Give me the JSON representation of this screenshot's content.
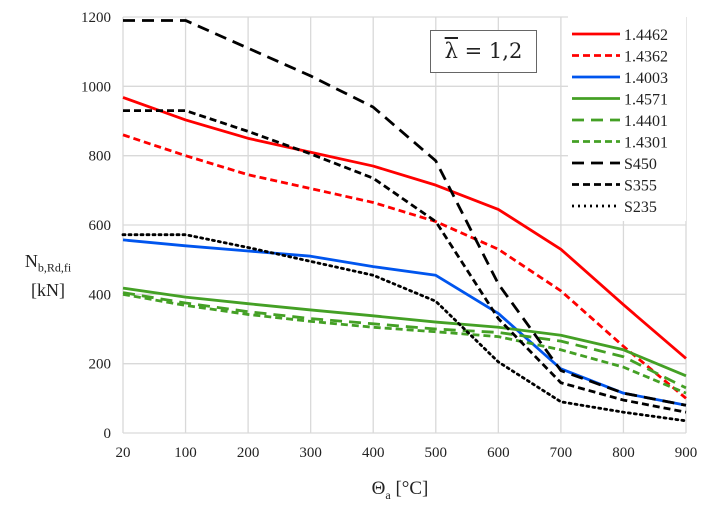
{
  "chart_data": {
    "type": "line",
    "title": "",
    "annotation": {
      "symbol": "λ",
      "rest": " = 1,2"
    },
    "xlabel": {
      "main": "Θ",
      "sub": "a",
      "unit": " [°C]"
    },
    "ylabel": {
      "main": "N",
      "sub": "b,Rd,fi",
      "unit": "[kN]"
    },
    "categories": [
      "20",
      "100",
      "200",
      "300",
      "400",
      "500",
      "600",
      "700",
      "800",
      "900"
    ],
    "ylim": [
      0,
      1200
    ],
    "yticks": [
      0,
      200,
      400,
      600,
      800,
      1000,
      1200
    ],
    "grid": true,
    "legend_position": "top-right",
    "series": [
      {
        "name": "1.4462",
        "color": "#ff0000",
        "dash": "solid",
        "values": [
          968,
          903,
          850,
          810,
          770,
          715,
          645,
          530,
          370,
          215
        ]
      },
      {
        "name": "1.4362",
        "color": "#ff0000",
        "dash": "dashed",
        "values": [
          860,
          800,
          745,
          705,
          665,
          610,
          530,
          410,
          250,
          100
        ]
      },
      {
        "name": "1.4003",
        "color": "#0055ee",
        "dash": "solid",
        "values": [
          557,
          540,
          525,
          510,
          480,
          455,
          345,
          185,
          115,
          80
        ]
      },
      {
        "name": "1.4571",
        "color": "#44a025",
        "dash": "solid",
        "values": [
          418,
          392,
          373,
          355,
          338,
          320,
          305,
          282,
          240,
          165
        ]
      },
      {
        "name": "1.4401",
        "color": "#44a025",
        "dash": "longdash",
        "values": [
          405,
          375,
          350,
          330,
          315,
          300,
          290,
          265,
          220,
          130
        ]
      },
      {
        "name": "1.4301",
        "color": "#44a025",
        "dash": "dashed",
        "values": [
          400,
          368,
          342,
          322,
          305,
          292,
          278,
          240,
          190,
          115
        ]
      },
      {
        "name": "S450",
        "color": "#000000",
        "dash": "longdash",
        "values": [
          1190,
          1190,
          1110,
          1030,
          940,
          785,
          430,
          180,
          115,
          80
        ]
      },
      {
        "name": "S355",
        "color": "#000000",
        "dash": "dashed",
        "values": [
          930,
          930,
          870,
          805,
          735,
          610,
          330,
          145,
          95,
          60
        ]
      },
      {
        "name": "S235",
        "color": "#000000",
        "dash": "dotted",
        "values": [
          572,
          572,
          535,
          495,
          455,
          380,
          205,
          90,
          60,
          35
        ]
      }
    ]
  }
}
